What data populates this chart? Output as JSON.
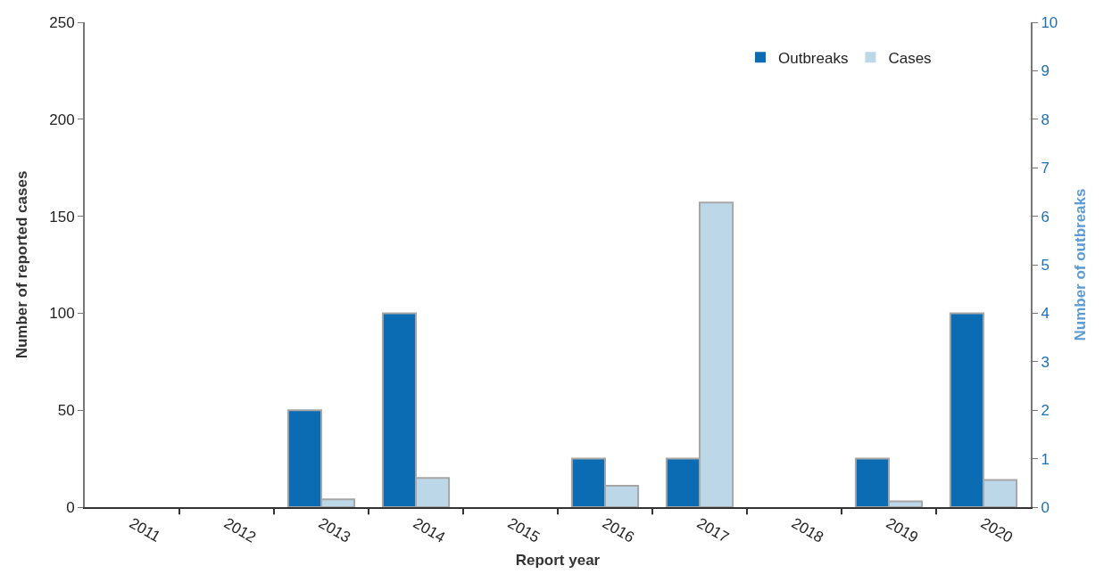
{
  "chart_data": {
    "type": "bar",
    "xlabel": "Report year",
    "ylabel": "Number of reported cases",
    "y2label": "Number of outbreaks",
    "categories": [
      "2011",
      "2012",
      "2013",
      "2014",
      "2015",
      "2016",
      "2017",
      "2018",
      "2019",
      "2020"
    ],
    "series": [
      {
        "name": "Outbreaks",
        "color": "#0b6cb3",
        "axis": "y2",
        "values": [
          0,
          0,
          2,
          4,
          0,
          1,
          1,
          0,
          1,
          4
        ]
      },
      {
        "name": "Cases",
        "color": "#bcd7e8",
        "values": [
          0,
          0,
          4,
          15,
          0,
          11,
          157,
          0,
          3,
          14
        ]
      }
    ],
    "ylim": [
      0,
      250
    ],
    "yticks": [
      0,
      50,
      100,
      150,
      200,
      250
    ],
    "y2lim": [
      0,
      10
    ],
    "y2ticks": [
      0,
      1,
      2,
      3,
      4,
      5,
      6,
      7,
      8,
      9,
      10
    ],
    "grid": false,
    "legend": "top right"
  }
}
